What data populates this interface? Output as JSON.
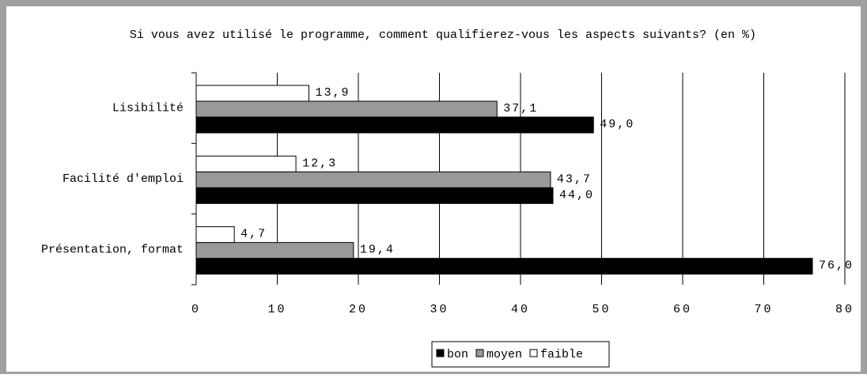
{
  "chart_data": {
    "type": "hbar",
    "title": "Si vous avez utilisé le programme, comment qualifierez-vous les aspects suivants? (en %)",
    "categories": [
      "Lisibilité",
      "Facilité d'emploi",
      "Présentation, format"
    ],
    "series": [
      {
        "name": "bon",
        "color": "#000000",
        "values": [
          49.0,
          44.0,
          76.0
        ],
        "value_labels": [
          "49,0",
          "44,0",
          "76,0"
        ]
      },
      {
        "name": "moyen",
        "color": "#999999",
        "values": [
          37.1,
          43.7,
          19.4
        ],
        "value_labels": [
          "37,1",
          "43,7",
          "19,4"
        ]
      },
      {
        "name": "faible",
        "color": "#ffffff",
        "values": [
          13.9,
          12.3,
          4.7
        ],
        "value_labels": [
          "13,9",
          "12,3",
          "4,7"
        ]
      }
    ],
    "xlim": [
      0,
      80
    ],
    "xticks": [
      0,
      10,
      20,
      30,
      40,
      50,
      60,
      70,
      80
    ],
    "grid": true,
    "legend": "bottom"
  }
}
